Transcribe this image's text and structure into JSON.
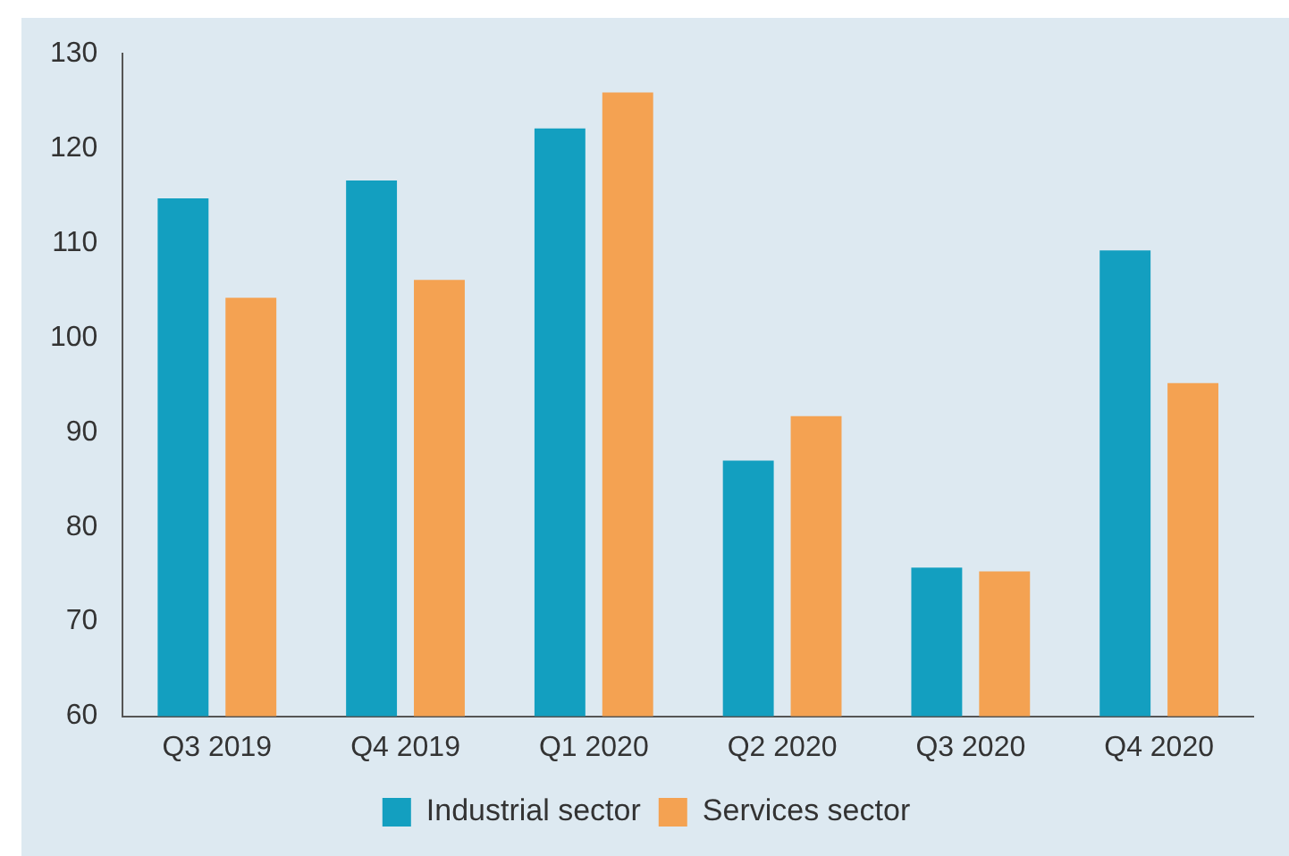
{
  "chart_data": {
    "type": "bar",
    "categories": [
      "Q3 2019",
      "Q4 2019",
      "Q1 2020",
      "Q2 2020",
      "Q3 2020",
      "Q4 2020"
    ],
    "series": [
      {
        "name": "Industrial sector",
        "color": "#139fc0",
        "values": [
          114.7,
          116.6,
          122.1,
          87,
          75.7,
          109.2
        ]
      },
      {
        "name": "Services sector",
        "color": "#f4a252",
        "values": [
          104.2,
          106.1,
          125.9,
          91.7,
          75.3,
          95.2
        ]
      }
    ],
    "ylim": [
      60,
      130
    ],
    "yticks": [
      60,
      70,
      80,
      90,
      100,
      110,
      120,
      130
    ],
    "grid": false,
    "legend": "bottom"
  }
}
